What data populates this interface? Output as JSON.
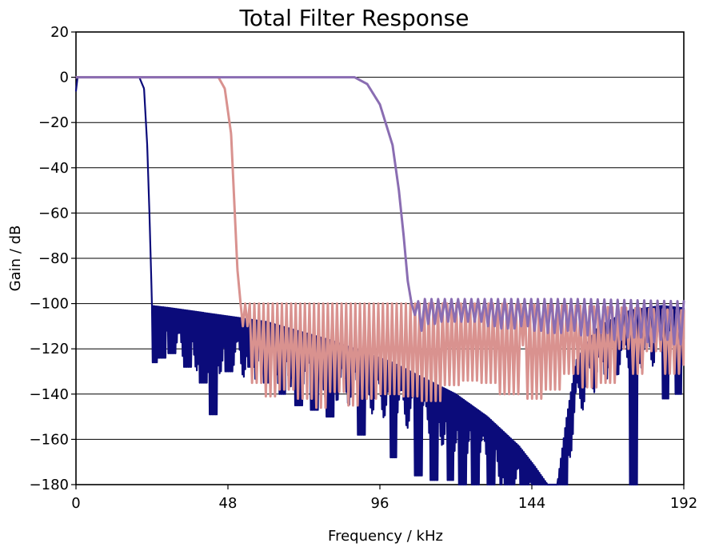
{
  "chart_data": {
    "type": "line",
    "title": "Total Filter Response",
    "xlabel": "Frequency / kHz",
    "ylabel": "Gain / dB",
    "xlim": [
      0,
      192
    ],
    "ylim": [
      -180,
      20
    ],
    "x_ticks": [
      0,
      48,
      96,
      144,
      192
    ],
    "x_tick_labels": [
      "0",
      "48",
      "96",
      "144",
      "192"
    ],
    "y_ticks": [
      20,
      0,
      -20,
      -40,
      -60,
      -80,
      -100,
      -120,
      -140,
      -160,
      -180
    ],
    "y_tick_labels": [
      "20",
      "0",
      "−20",
      "−40",
      "−60",
      "−80",
      "−100",
      "−120",
      "−140",
      "−160",
      "−180"
    ],
    "grid": "horizontal",
    "legend": "none",
    "series": [
      {
        "color": "#0b0b7a",
        "passband_edge": 20.5,
        "stopband_start": 24,
        "stopband_level": -101,
        "ripple_period_khz": 0.9,
        "points": [
          [
            0,
            -6
          ],
          [
            0.5,
            0
          ],
          [
            20,
            0
          ],
          [
            21.5,
            -5
          ],
          [
            22.5,
            -30
          ],
          [
            23.2,
            -60
          ],
          [
            23.8,
            -90
          ],
          [
            24,
            -101
          ],
          [
            30,
            -102
          ],
          [
            40,
            -104
          ],
          [
            60,
            -108
          ],
          [
            80,
            -116
          ],
          [
            100,
            -126
          ],
          [
            120,
            -140
          ],
          [
            130,
            -150
          ],
          [
            140,
            -163
          ],
          [
            145,
            -172
          ],
          [
            149,
            -180
          ],
          [
            152,
            -180
          ],
          [
            155,
            -150
          ],
          [
            158,
            -125
          ],
          [
            165,
            -110
          ],
          [
            175,
            -103
          ],
          [
            185,
            -101
          ],
          [
            192,
            -102
          ]
        ],
        "spikes": [
          [
            24.5,
            -126
          ],
          [
            27,
            -124
          ],
          [
            30,
            -122
          ],
          [
            35,
            -128
          ],
          [
            40,
            -135
          ],
          [
            43,
            -149
          ],
          [
            48,
            -130
          ],
          [
            55,
            -128
          ],
          [
            60,
            -135
          ],
          [
            65,
            -140
          ],
          [
            70,
            -145
          ],
          [
            75,
            -147
          ],
          [
            80,
            -150
          ],
          [
            90,
            -158
          ],
          [
            100,
            -168
          ],
          [
            108,
            -176
          ],
          [
            113,
            -178
          ],
          [
            118,
            -178
          ],
          [
            122,
            -180
          ],
          [
            126,
            -180
          ],
          [
            131,
            -180
          ],
          [
            136,
            -180
          ],
          [
            141,
            -180
          ],
          [
            154,
            -180
          ],
          [
            176,
            -180
          ],
          [
            186,
            -142
          ],
          [
            190,
            -140
          ]
        ]
      },
      {
        "color": "#d9928f",
        "passband_edge": 45,
        "stopband_start": 52,
        "stopband_level": -100,
        "ripple_period_khz": 2.9,
        "points": [
          [
            0,
            0
          ],
          [
            45,
            0
          ],
          [
            47,
            -5
          ],
          [
            49,
            -25
          ],
          [
            50,
            -55
          ],
          [
            51,
            -85
          ],
          [
            52,
            -100
          ],
          [
            70,
            -100
          ],
          [
            100,
            -100
          ],
          [
            130,
            -100
          ],
          [
            160,
            -101
          ],
          [
            192,
            -103
          ]
        ],
        "spikes": [
          [
            52,
            -110
          ],
          [
            56,
            -135
          ],
          [
            61,
            -141
          ],
          [
            66,
            -138
          ],
          [
            72,
            -142
          ],
          [
            77,
            -146
          ],
          [
            82,
            -139
          ],
          [
            87,
            -145
          ],
          [
            92,
            -142
          ],
          [
            98,
            -140
          ],
          [
            105,
            -141
          ],
          [
            112,
            -143
          ],
          [
            118,
            -136
          ],
          [
            124,
            -134
          ],
          [
            130,
            -135
          ],
          [
            136,
            -140
          ],
          [
            145,
            -142
          ],
          [
            150,
            -138
          ],
          [
            156,
            -131
          ],
          [
            162,
            -137
          ],
          [
            168,
            -135
          ],
          [
            172,
            -120
          ],
          [
            176,
            -131
          ],
          [
            182,
            -121
          ],
          [
            188,
            -131
          ],
          [
            192,
            -127
          ]
        ]
      },
      {
        "color": "#8a6db2",
        "passband_edge": 88,
        "stopband_start": 106,
        "stopband_level": -97,
        "ripple_period_khz": 4.2,
        "points": [
          [
            0,
            0
          ],
          [
            88,
            0
          ],
          [
            92,
            -3
          ],
          [
            96,
            -12
          ],
          [
            100,
            -30
          ],
          [
            102,
            -50
          ],
          [
            103.5,
            -70
          ],
          [
            104.8,
            -90
          ],
          [
            106,
            -100
          ],
          [
            110,
            -98
          ],
          [
            120,
            -98
          ],
          [
            140,
            -98
          ],
          [
            160,
            -98
          ],
          [
            192,
            -99
          ]
        ],
        "spikes": [
          [
            106,
            -105
          ],
          [
            108,
            -112
          ],
          [
            112,
            -109
          ],
          [
            116,
            -108
          ],
          [
            120,
            -108
          ],
          [
            125,
            -108
          ],
          [
            130,
            -110
          ],
          [
            135,
            -111
          ],
          [
            140,
            -110
          ],
          [
            145,
            -112
          ],
          [
            150,
            -113
          ],
          [
            155,
            -112
          ],
          [
            160,
            -114
          ],
          [
            165,
            -113
          ],
          [
            170,
            -116
          ],
          [
            175,
            -115
          ],
          [
            180,
            -117
          ],
          [
            185,
            -116
          ],
          [
            190,
            -118
          ]
        ]
      }
    ]
  }
}
